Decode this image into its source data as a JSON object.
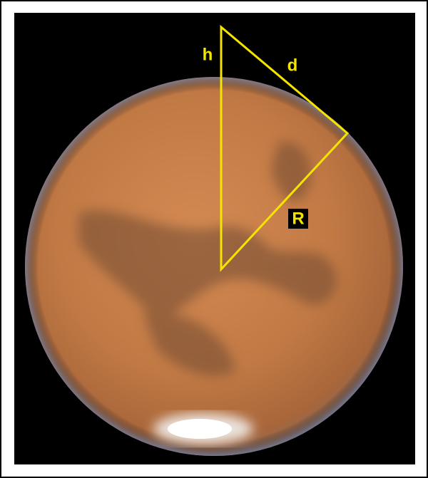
{
  "labels": [
    "h",
    "d",
    "R"
  ]
}
